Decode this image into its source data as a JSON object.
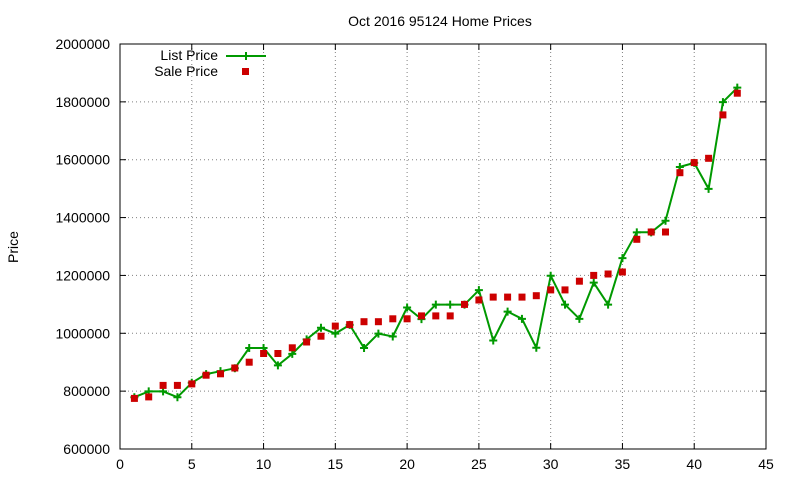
{
  "chart_data": {
    "type": "line",
    "title": "Oct 2016 95124 Home Prices",
    "xlabel": "",
    "ylabel": "Price",
    "xlim": [
      0,
      45
    ],
    "ylim": [
      600000,
      2000000
    ],
    "x_ticks": [
      0,
      5,
      10,
      15,
      20,
      25,
      30,
      35,
      40,
      45
    ],
    "y_ticks": [
      600000,
      800000,
      1000000,
      1200000,
      1400000,
      1600000,
      1800000,
      2000000
    ],
    "x_tick_labels": [
      "0",
      "5",
      "10",
      "15",
      "20",
      "25",
      "30",
      "35",
      "40",
      "45"
    ],
    "y_tick_labels": [
      "600000",
      "800000",
      "1000000",
      "1200000",
      "1400000",
      "1600000",
      "1800000",
      "2000000"
    ],
    "grid": true,
    "legend_position": "top-left",
    "x": [
      1,
      2,
      3,
      4,
      5,
      6,
      7,
      8,
      9,
      10,
      11,
      12,
      13,
      14,
      15,
      16,
      17,
      18,
      19,
      20,
      21,
      22,
      23,
      24,
      25,
      26,
      27,
      28,
      29,
      30,
      31,
      32,
      33,
      34,
      35,
      36,
      37,
      38,
      39,
      40,
      41,
      42,
      43
    ],
    "series": [
      {
        "name": "List Price",
        "style": "line-with-plus-markers",
        "color": "#009900",
        "values": [
          779000,
          799000,
          799000,
          779000,
          829000,
          859000,
          869000,
          879000,
          949000,
          949000,
          889000,
          929000,
          979000,
          1019000,
          999000,
          1029000,
          949000,
          999000,
          989000,
          1089000,
          1049000,
          1099000,
          1099000,
          1099000,
          1149000,
          975000,
          1075000,
          1050000,
          950000,
          1199000,
          1099000,
          1050000,
          1175000,
          1099000,
          1260000,
          1349000,
          1349000,
          1389000,
          1575000,
          1589000,
          1499000,
          1799000,
          1849000
        ]
      },
      {
        "name": "Sale Price",
        "style": "square-markers",
        "color": "#cc0000",
        "values": [
          775000,
          780000,
          820000,
          820000,
          825000,
          855000,
          860000,
          880000,
          900000,
          930000,
          930000,
          950000,
          970000,
          990000,
          1025000,
          1030000,
          1040000,
          1040000,
          1050000,
          1050000,
          1060000,
          1060000,
          1060000,
          1100000,
          1115000,
          1125000,
          1125000,
          1125000,
          1130000,
          1150000,
          1150000,
          1180000,
          1200000,
          1205000,
          1212000,
          1325000,
          1350000,
          1350000,
          1555000,
          1590000,
          1605000,
          1755000,
          1830000
        ]
      }
    ]
  }
}
